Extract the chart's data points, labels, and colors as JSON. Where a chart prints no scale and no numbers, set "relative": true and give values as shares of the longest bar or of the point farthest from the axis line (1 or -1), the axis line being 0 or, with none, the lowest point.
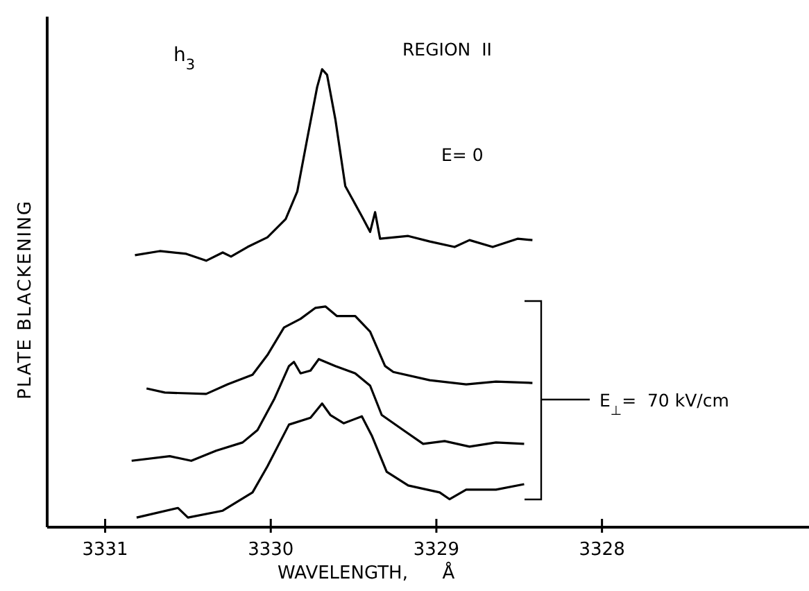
{
  "chart_data": {
    "type": "line",
    "relative": true,
    "xlabel": "WAVELENGTH,      Å",
    "ylabel": "PLATE BLACKENING",
    "xlim": [
      3331.35,
      3326.75
    ],
    "xticks": [
      3331,
      3330,
      3329,
      3328
    ],
    "grid": false,
    "line_style": "solid",
    "marker": "none",
    "annotations": [
      "h$_{3}$",
      "REGION  II",
      "E= 0",
      "E$_{⊥}$=  70 kV/cm"
    ],
    "series": [
      {
        "color": "#000000",
        "x": [
          3330.82,
          3330.67,
          3330.51,
          3330.39,
          3330.29,
          3330.24,
          3330.14,
          3330.02,
          3329.91,
          3329.84,
          3329.78,
          3329.72,
          3329.69,
          3329.66,
          3329.61,
          3329.55,
          3329.45,
          3329.4,
          3329.37,
          3329.34,
          3329.17,
          3329.04,
          3328.89,
          3328.8,
          3328.66,
          3328.51,
          3328.42
        ],
        "values": [
          0.594,
          0.603,
          0.597,
          0.582,
          0.6,
          0.591,
          0.612,
          0.633,
          0.673,
          0.733,
          0.848,
          0.961,
          1.0,
          0.988,
          0.891,
          0.745,
          0.679,
          0.645,
          0.688,
          0.63,
          0.636,
          0.624,
          0.612,
          0.627,
          0.612,
          0.63,
          0.627
        ]
      },
      {
        "color": "#000000",
        "x": [
          3330.75,
          3330.64,
          3330.39,
          3330.26,
          3330.11,
          3330.02,
          3329.92,
          3329.82,
          3329.73,
          3329.67,
          3329.6,
          3329.49,
          3329.4,
          3329.31,
          3329.26,
          3329.04,
          3328.82,
          3328.64,
          3328.42
        ],
        "values": [
          0.303,
          0.294,
          0.291,
          0.312,
          0.333,
          0.376,
          0.436,
          0.455,
          0.479,
          0.482,
          0.461,
          0.461,
          0.427,
          0.352,
          0.339,
          0.321,
          0.312,
          0.318,
          0.315
        ]
      },
      {
        "color": "#000000",
        "x": [
          3330.84,
          3330.61,
          3330.48,
          3330.33,
          3330.17,
          3330.08,
          3329.98,
          3329.89,
          3329.86,
          3329.82,
          3329.76,
          3329.71,
          3329.61,
          3329.49,
          3329.4,
          3329.33,
          3329.2,
          3329.08,
          3328.95,
          3328.8,
          3328.64,
          3328.47
        ],
        "values": [
          0.145,
          0.155,
          0.145,
          0.167,
          0.185,
          0.212,
          0.279,
          0.352,
          0.361,
          0.336,
          0.342,
          0.367,
          0.352,
          0.336,
          0.309,
          0.245,
          0.212,
          0.182,
          0.188,
          0.176,
          0.185,
          0.182
        ]
      },
      {
        "color": "#000000",
        "x": [
          3330.81,
          3330.56,
          3330.5,
          3330.29,
          3330.11,
          3330.02,
          3329.89,
          3329.76,
          3329.69,
          3329.64,
          3329.56,
          3329.45,
          3329.39,
          3329.3,
          3329.17,
          3328.98,
          3328.92,
          3328.82,
          3328.64,
          3328.47
        ],
        "values": [
          0.021,
          0.042,
          0.021,
          0.036,
          0.076,
          0.133,
          0.224,
          0.239,
          0.27,
          0.245,
          0.227,
          0.242,
          0.2,
          0.121,
          0.091,
          0.076,
          0.061,
          0.082,
          0.082,
          0.094
        ]
      }
    ]
  }
}
